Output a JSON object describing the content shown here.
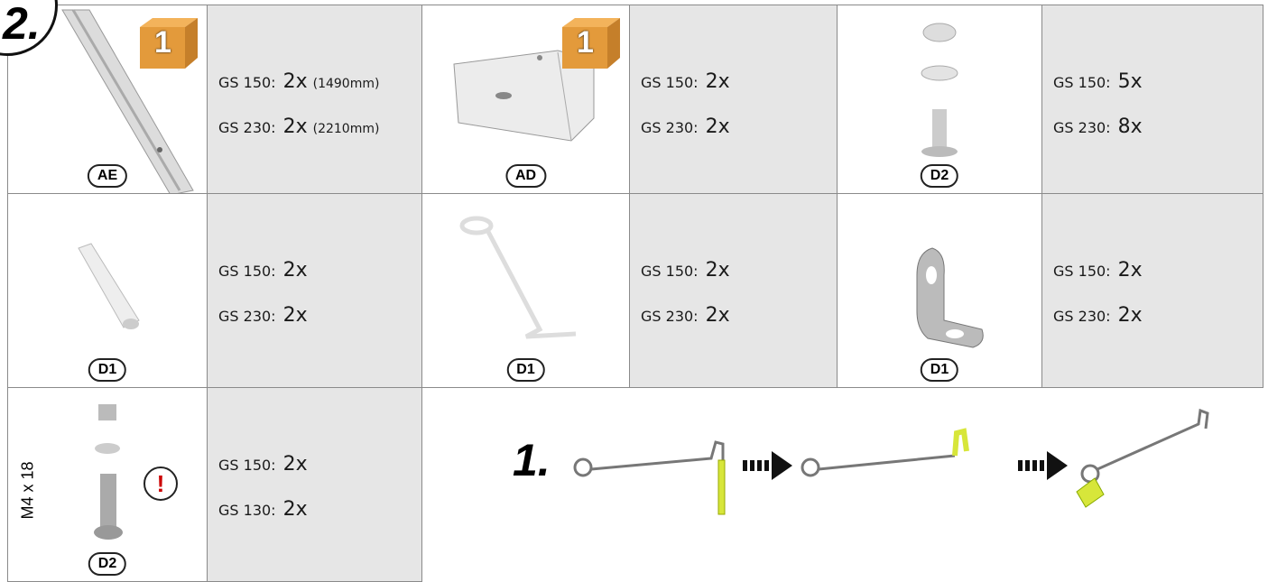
{
  "step": "2.",
  "parts": [
    {
      "code": "AE",
      "box": "1",
      "lines": [
        {
          "model": "GS 150:",
          "qty": "2x",
          "note": "(1490mm)"
        },
        {
          "model": "GS 230:",
          "qty": "2x",
          "note": "(2210mm)"
        }
      ]
    },
    {
      "code": "AD",
      "box": "1",
      "lines": [
        {
          "model": "GS 150:",
          "qty": "2x"
        },
        {
          "model": "GS 230:",
          "qty": "2x"
        }
      ]
    },
    {
      "code": "D2",
      "lines": [
        {
          "model": "GS 150:",
          "qty": "5x"
        },
        {
          "model": "GS 230:",
          "qty": "8x"
        }
      ]
    },
    {
      "code": "D1",
      "lines": [
        {
          "model": "GS 150:",
          "qty": "2x"
        },
        {
          "model": "GS 230:",
          "qty": "2x"
        }
      ]
    },
    {
      "code": "D1",
      "lines": [
        {
          "model": "GS 150:",
          "qty": "2x"
        },
        {
          "model": "GS 230:",
          "qty": "2x"
        }
      ]
    },
    {
      "code": "D1",
      "lines": [
        {
          "model": "GS 150:",
          "qty": "2x"
        },
        {
          "model": "GS 230:",
          "qty": "2x"
        }
      ]
    },
    {
      "code": "D2",
      "spec": "M4 x 18",
      "warning": "!",
      "lines": [
        {
          "model": "GS 150:",
          "qty": "2x"
        },
        {
          "model": "GS 130:",
          "qty": "2x"
        }
      ]
    }
  ],
  "instruction": {
    "step": "1."
  }
}
